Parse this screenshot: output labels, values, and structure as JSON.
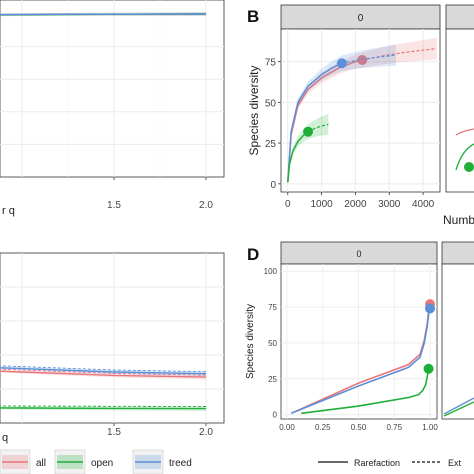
{
  "panels": {
    "A": {
      "xlabel": "r q",
      "xticks": [
        "1.5",
        "2.0"
      ]
    },
    "B": {
      "letter": "B",
      "strip": "0",
      "ylabel": "Species diversity",
      "xlabel_fragment": "Numb",
      "yticks": [
        "0",
        "25",
        "50",
        "75"
      ],
      "xticks": [
        "0",
        "1000",
        "2000",
        "3000",
        "4000"
      ]
    },
    "C": {
      "xlabel": "q",
      "xticks": [
        "1.5",
        "2.0"
      ]
    },
    "D": {
      "letter": "D",
      "strip": "0",
      "ylabel": "Species diversity",
      "yticks": [
        "0",
        "25",
        "50",
        "75",
        "100"
      ],
      "xticks": [
        "0.00",
        "0.25",
        "0.50",
        "0.75",
        "1.00"
      ]
    }
  },
  "legend": {
    "items": [
      {
        "label": "all",
        "color": "#e8767a"
      },
      {
        "label": "open",
        "color": "#1fae38"
      },
      {
        "label": "treed",
        "color": "#5b8fd9"
      }
    ],
    "line_types": [
      {
        "label": "Rarefaction",
        "dash": "solid"
      },
      {
        "label": "Ext",
        "dash": "dashed"
      }
    ]
  },
  "colors": {
    "all": "#e8767a",
    "open": "#1fae38",
    "treed": "#5b8fd9",
    "strip_bg": "#d9d9d9",
    "grid": "#ebebeb"
  },
  "chart_data": [
    {
      "panel": "A",
      "type": "line",
      "xlabel": "r q",
      "xlim": [
        0,
        2
      ],
      "ylim": [
        0,
        1
      ],
      "series": [
        {
          "name": "all",
          "x": [
            0,
            0.1,
            0.2,
            0.4,
            0.8,
            1.2,
            1.6,
            2.0
          ],
          "y": [
            0.92,
            0.95,
            0.97,
            0.985,
            0.995,
            0.998,
            0.999,
            1.0
          ]
        },
        {
          "name": "open",
          "x": [
            0,
            0.1,
            0.2,
            0.4,
            0.8,
            1.2,
            1.6,
            2.0
          ],
          "y": [
            0.85,
            0.92,
            0.955,
            0.98,
            0.993,
            0.997,
            0.999,
            1.0
          ]
        },
        {
          "name": "treed",
          "x": [
            0,
            0.1,
            0.2,
            0.4,
            0.8,
            1.2,
            1.6,
            2.0
          ],
          "y": [
            0.93,
            0.955,
            0.975,
            0.988,
            0.996,
            0.998,
            0.999,
            1.0
          ]
        }
      ]
    },
    {
      "panel": "B",
      "type": "line",
      "xlabel": "Numb",
      "ylabel": "Species diversity",
      "xlim": [
        -200,
        4500
      ],
      "ylim": [
        -5,
        95
      ],
      "series": [
        {
          "name": "all",
          "interpolated_x": [
            1,
            100,
            300,
            600,
            1000,
            1500,
            2000,
            2200
          ],
          "interpolated_y": [
            1,
            30,
            48,
            58,
            65,
            71,
            75,
            76
          ],
          "extrapolated_x": [
            2200,
            2800,
            3400,
            4000,
            4400
          ],
          "extrapolated_y": [
            76,
            78.5,
            80.5,
            82,
            83
          ],
          "observed": [
            2200,
            76
          ]
        },
        {
          "name": "treed",
          "interpolated_x": [
            1,
            100,
            300,
            600,
            1000,
            1300,
            1600
          ],
          "interpolated_y": [
            1,
            32,
            50,
            60,
            67,
            71,
            74
          ],
          "extrapolated_x": [
            1600,
            2200,
            2800,
            3200
          ],
          "extrapolated_y": [
            74,
            76.5,
            78,
            79
          ],
          "observed": [
            1600,
            74
          ]
        },
        {
          "name": "open",
          "interpolated_x": [
            1,
            50,
            150,
            300,
            450,
            600
          ],
          "interpolated_y": [
            1,
            12,
            20,
            26,
            29.5,
            32
          ],
          "extrapolated_x": [
            600,
            800,
            1000,
            1200
          ],
          "extrapolated_y": [
            32,
            34,
            35.5,
            36.5
          ],
          "observed": [
            600,
            32
          ]
        }
      ]
    },
    {
      "panel": "C",
      "type": "line",
      "xlabel": "q",
      "xlim": [
        0,
        2
      ],
      "series": [
        {
          "name": "all",
          "x": [
            0,
            0.5,
            1.0,
            1.5,
            2.0
          ],
          "y": [
            0.34,
            0.32,
            0.3,
            0.28,
            0.27
          ]
        },
        {
          "name": "treed",
          "x": [
            0,
            0.5,
            1.0,
            1.5,
            2.0
          ],
          "y": [
            0.36,
            0.34,
            0.32,
            0.3,
            0.29
          ]
        },
        {
          "name": "open",
          "x": [
            0,
            0.5,
            1.0,
            1.5,
            2.0
          ],
          "y": [
            0.095,
            0.09,
            0.088,
            0.086,
            0.085
          ]
        }
      ]
    },
    {
      "panel": "D",
      "type": "line",
      "ylabel": "Species diversity",
      "xlim": [
        0,
        1
      ],
      "ylim": [
        -3,
        105
      ],
      "series": [
        {
          "name": "all",
          "x": [
            0.03,
            0.5,
            0.85,
            0.93,
            0.96,
            0.98,
            0.99,
            1.0
          ],
          "y": [
            1,
            22,
            35,
            42,
            52,
            63,
            72,
            77
          ]
        },
        {
          "name": "treed",
          "x": [
            0.03,
            0.5,
            0.85,
            0.93,
            0.96,
            0.98,
            0.99,
            1.0
          ],
          "y": [
            1,
            20,
            33,
            40,
            50,
            61,
            70,
            74
          ]
        },
        {
          "name": "open",
          "x": [
            0.1,
            0.5,
            0.85,
            0.92,
            0.95,
            0.97,
            0.98,
            0.99
          ],
          "y": [
            1,
            6,
            12,
            14,
            17,
            21,
            26,
            32
          ]
        }
      ]
    }
  ]
}
